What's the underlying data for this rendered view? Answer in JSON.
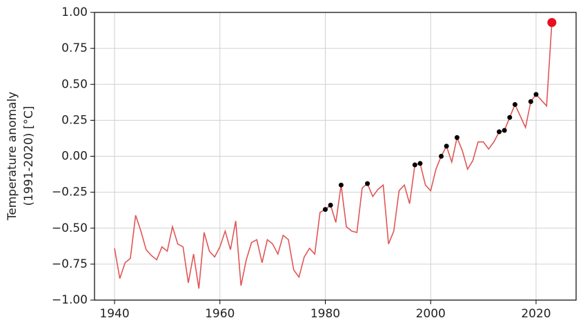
{
  "chart_data": {
    "type": "line",
    "ylabel": [
      "Temperature anomaly",
      "(1991-2020) [°C]"
    ],
    "x": [
      1940,
      1941,
      1942,
      1943,
      1944,
      1945,
      1946,
      1947,
      1948,
      1949,
      1950,
      1951,
      1952,
      1953,
      1954,
      1955,
      1956,
      1957,
      1958,
      1959,
      1960,
      1961,
      1962,
      1963,
      1964,
      1965,
      1966,
      1967,
      1968,
      1969,
      1970,
      1971,
      1972,
      1973,
      1974,
      1975,
      1976,
      1977,
      1978,
      1979,
      1980,
      1981,
      1982,
      1983,
      1984,
      1985,
      1986,
      1987,
      1988,
      1989,
      1990,
      1991,
      1992,
      1993,
      1994,
      1995,
      1996,
      1997,
      1998,
      1999,
      2000,
      2001,
      2002,
      2003,
      2004,
      2005,
      2006,
      2007,
      2008,
      2009,
      2010,
      2011,
      2012,
      2013,
      2014,
      2015,
      2016,
      2017,
      2018,
      2019,
      2020,
      2021,
      2022,
      2023
    ],
    "series": [
      {
        "color": "#e05555",
        "values": [
          -0.64,
          -0.85,
          -0.74,
          -0.71,
          -0.41,
          -0.52,
          -0.65,
          -0.69,
          -0.72,
          -0.63,
          -0.66,
          -0.49,
          -0.61,
          -0.63,
          -0.88,
          -0.68,
          -0.92,
          -0.53,
          -0.66,
          -0.7,
          -0.63,
          -0.52,
          -0.65,
          -0.45,
          -0.9,
          -0.72,
          -0.6,
          -0.58,
          -0.74,
          -0.58,
          -0.61,
          -0.68,
          -0.55,
          -0.58,
          -0.79,
          -0.84,
          -0.7,
          -0.64,
          -0.68,
          -0.39,
          -0.37,
          -0.34,
          -0.46,
          -0.2,
          -0.49,
          -0.52,
          -0.53,
          -0.22,
          -0.19,
          -0.28,
          -0.23,
          -0.2,
          -0.61,
          -0.52,
          -0.24,
          -0.2,
          -0.33,
          -0.06,
          -0.05,
          -0.2,
          -0.24,
          -0.09,
          0.0,
          0.07,
          -0.04,
          0.13,
          0.04,
          -0.09,
          -0.03,
          0.1,
          0.1,
          0.05,
          0.1,
          0.17,
          0.18,
          0.27,
          0.36,
          0.28,
          0.2,
          0.38,
          0.43,
          0.39,
          0.35,
          0.93
        ]
      }
    ],
    "marker_years": [
      1980,
      1981,
      1983,
      1988,
      1997,
      1998,
      2002,
      2003,
      2005,
      2013,
      2014,
      2015,
      2016,
      2019,
      2020
    ],
    "marker_color": "#000000",
    "highlight_year": 2023,
    "highlight_color": "#e8101e",
    "xlim": [
      1936.2,
      2027.6
    ],
    "ylim": [
      -1,
      1
    ],
    "xticks": [
      1940,
      1960,
      1980,
      2000,
      2020
    ],
    "yticks": [
      {
        "value": -1,
        "label": "−1.00"
      },
      {
        "value": -0.75,
        "label": "−0.75"
      },
      {
        "value": -0.5,
        "label": "−0.50"
      },
      {
        "value": -0.25,
        "label": "−0.25"
      },
      {
        "value": 0,
        "label": "0.00"
      },
      {
        "value": 0.25,
        "label": "0.25"
      },
      {
        "value": 0.5,
        "label": "0.50"
      },
      {
        "value": 0.75,
        "label": "0.75"
      },
      {
        "value": 1,
        "label": "1.00"
      }
    ],
    "grid": true
  }
}
